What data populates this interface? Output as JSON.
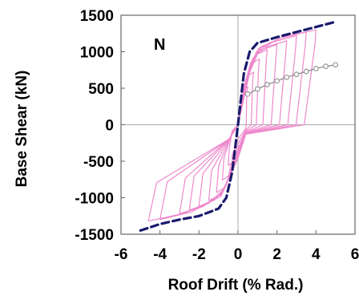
{
  "chart_data": {
    "type": "line",
    "panel_label": "N",
    "xlabel": "Roof Drift (% Rad.)",
    "ylabel": "Base Shear (kN)",
    "xlim": [
      -6,
      6
    ],
    "ylim": [
      -1500,
      1500
    ],
    "x_ticks": [
      "-6",
      "-4",
      "-2",
      "0",
      "2",
      "4",
      "6"
    ],
    "y_ticks": [
      "1500",
      "1000",
      "500",
      "0",
      "-500",
      "-1000",
      "-1500"
    ],
    "grid": false,
    "zero_lines": true,
    "series": [
      {
        "style": "hysteresis",
        "color": "#ee88cc",
        "cycles": [
          {
            "amp_pos": 0.5,
            "amp_neg": -0.5,
            "peak_pos": 520,
            "peak_neg": -560
          },
          {
            "amp_pos": 0.8,
            "amp_neg": -0.8,
            "peak_pos": 720,
            "peak_neg": -760
          },
          {
            "amp_pos": 1.1,
            "amp_neg": -1.1,
            "peak_pos": 900,
            "peak_neg": -930
          },
          {
            "amp_pos": 1.5,
            "amp_neg": -1.5,
            "peak_pos": 1030,
            "peak_neg": -1040
          },
          {
            "amp_pos": 2.0,
            "amp_neg": -2.0,
            "peak_pos": 1100,
            "peak_neg": -1120
          },
          {
            "amp_pos": 2.5,
            "amp_neg": -2.5,
            "peak_pos": 1150,
            "peak_neg": -1170
          },
          {
            "amp_pos": 3.0,
            "amp_neg": -3.0,
            "peak_pos": 1220,
            "peak_neg": -1220
          },
          {
            "amp_pos": 3.5,
            "amp_neg": -4.0,
            "peak_pos": 1270,
            "peak_neg": -1300
          },
          {
            "amp_pos": 4.0,
            "amp_neg": -4.6,
            "peak_pos": 1300,
            "peak_neg": -1320
          }
        ]
      },
      {
        "style": "dashed",
        "color": "#1a1a6e",
        "x": [
          -5.0,
          -4.0,
          -3.0,
          -2.0,
          -1.0,
          -0.6,
          -0.3,
          0.0,
          0.3,
          0.6,
          1.0,
          2.0,
          3.0,
          4.0,
          5.0
        ],
        "y": [
          -1450,
          -1360,
          -1300,
          -1250,
          -1150,
          -1000,
          -650,
          0,
          700,
          1000,
          1120,
          1200,
          1270,
          1340,
          1410
        ]
      },
      {
        "style": "line-markers",
        "color": "#999999",
        "x": [
          0.5,
          1.0,
          1.5,
          2.0,
          2.5,
          3.0,
          3.5,
          4.0,
          4.5,
          5.0
        ],
        "y": [
          420,
          490,
          550,
          600,
          650,
          690,
          730,
          770,
          800,
          820
        ]
      }
    ]
  }
}
